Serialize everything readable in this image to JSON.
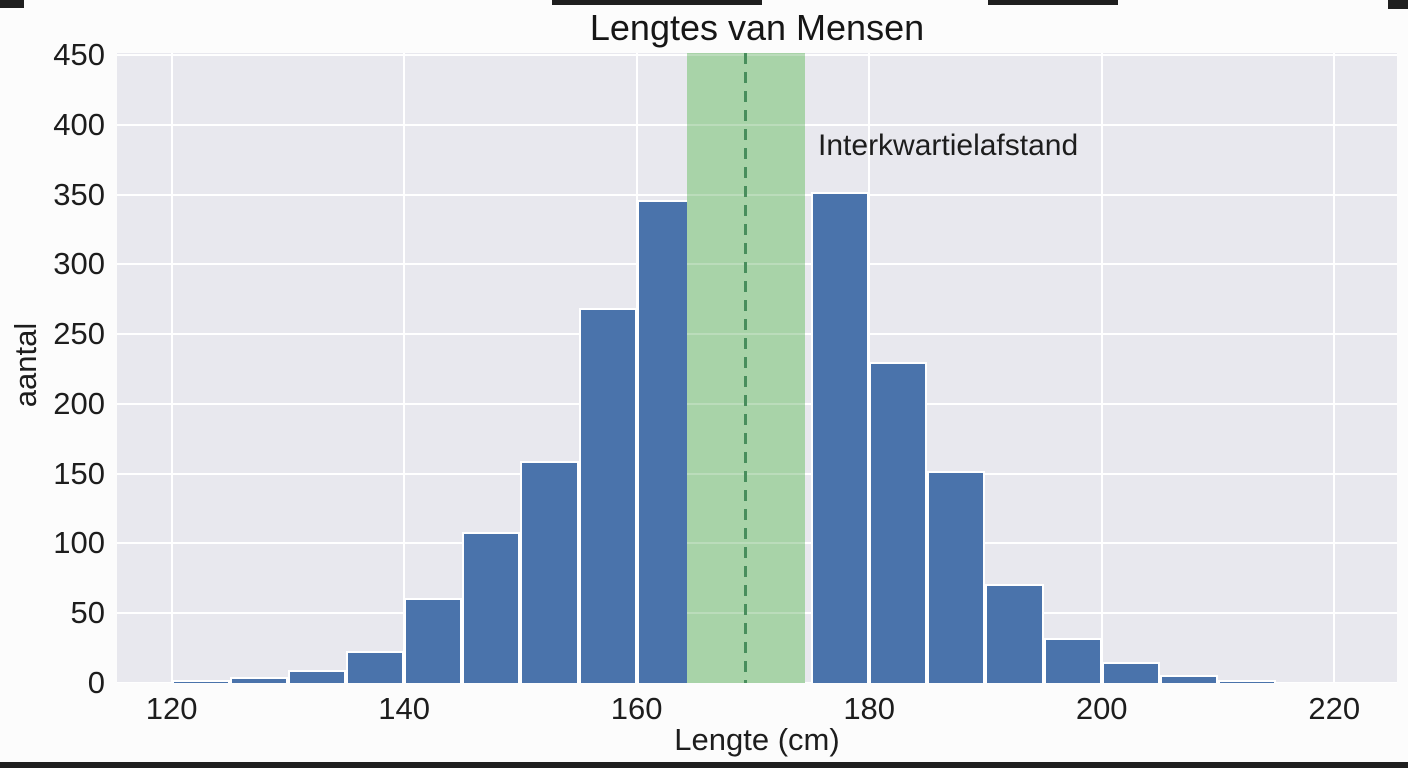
{
  "chart_data": {
    "type": "bar",
    "subtype": "histogram",
    "title": "Lengtes van Mensen",
    "xlabel": "Lengte (cm)",
    "ylabel": "aantal",
    "xlim": [
      115.3,
      225.4
    ],
    "ylim": [
      0,
      451.5
    ],
    "xticks": [
      120,
      140,
      160,
      180,
      200,
      220
    ],
    "yticks": [
      0,
      50,
      100,
      150,
      200,
      250,
      300,
      350,
      400,
      450
    ],
    "grid": true,
    "bin_width_cm": 5,
    "bins": [
      {
        "start": 120,
        "end": 125,
        "count": 2
      },
      {
        "start": 125,
        "end": 130,
        "count": 4
      },
      {
        "start": 130,
        "end": 135,
        "count": 9
      },
      {
        "start": 135,
        "end": 140,
        "count": 23
      },
      {
        "start": 140,
        "end": 145,
        "count": 61
      },
      {
        "start": 145,
        "end": 150,
        "count": 108
      },
      {
        "start": 150,
        "end": 155,
        "count": 159
      },
      {
        "start": 155,
        "end": 160,
        "count": 269
      },
      {
        "start": 160,
        "end": 165,
        "count": 346
      },
      {
        "start": 165,
        "end": 170,
        "count": null,
        "occluded_by_band": true
      },
      {
        "start": 170,
        "end": 175,
        "count": null,
        "occluded_by_band": true
      },
      {
        "start": 175,
        "end": 180,
        "count": 352
      },
      {
        "start": 180,
        "end": 185,
        "count": 230
      },
      {
        "start": 185,
        "end": 190,
        "count": 152
      },
      {
        "start": 190,
        "end": 195,
        "count": 71
      },
      {
        "start": 195,
        "end": 200,
        "count": 32
      },
      {
        "start": 200,
        "end": 205,
        "count": 15
      },
      {
        "start": 205,
        "end": 210,
        "count": 6
      },
      {
        "start": 210,
        "end": 215,
        "count": 2
      }
    ],
    "iqr_band": {
      "from_cm": 164.3,
      "to_cm": 174.5,
      "median_cm": 169.4
    },
    "annotation": {
      "text": "Interkwartielafstand",
      "x_cm": 175.6,
      "y_value": 385
    },
    "colors": {
      "bar": "#4a73ab",
      "bar_edge": "#ffffff",
      "plot_bg": "#e8e8ee",
      "grid": "#ffffff",
      "band": "#a8d3a8",
      "median_line": "#488e5c",
      "text": "#1d1d1d",
      "figure_bg": "#fcfcfc"
    }
  }
}
